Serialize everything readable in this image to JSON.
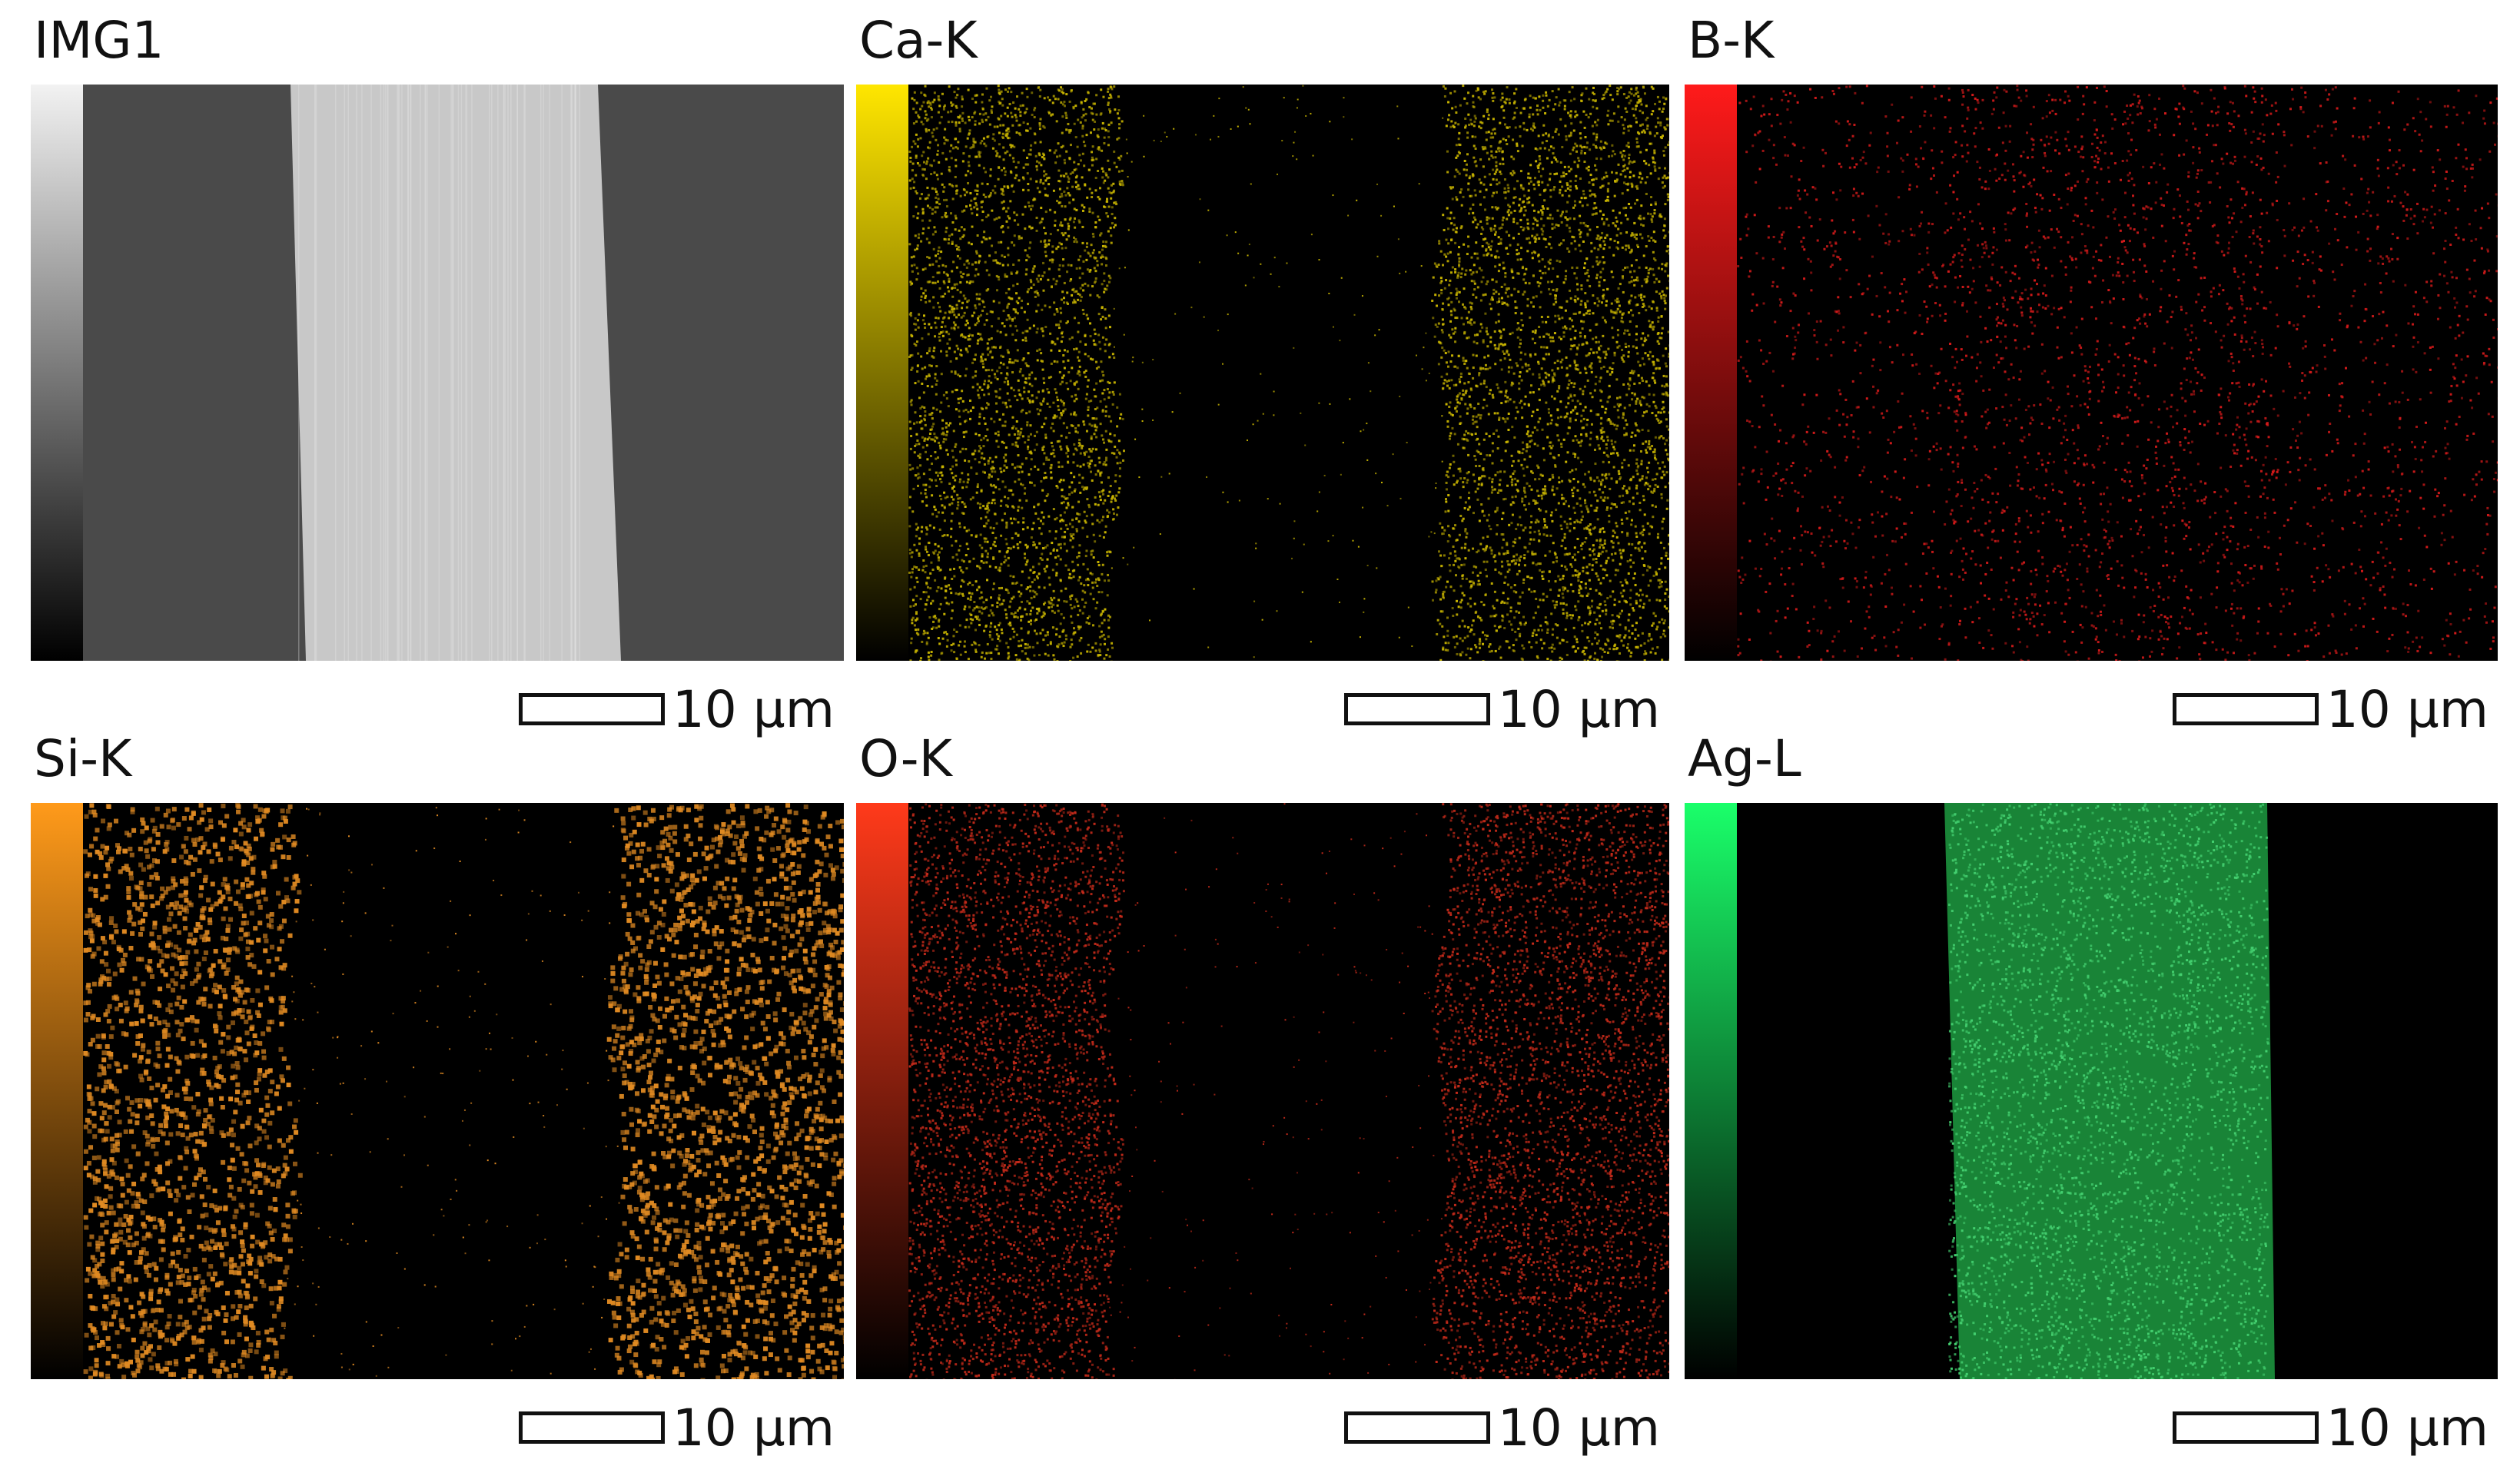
{
  "panels": [
    {
      "title": "IMG1",
      "scale_label": "10 μm",
      "mode": "sem",
      "colors": {
        "bar_top": "#f2f2f2",
        "bar_bottom": "#000000",
        "dark": "#4a4a4a",
        "bright": "#c8c8c8"
      }
    },
    {
      "title": "Ca-K",
      "scale_label": "10 μm",
      "mode": "sides",
      "colors": {
        "bar_top": "#ffe600",
        "bar_bottom": "#000000",
        "signal": "#c8b400"
      }
    },
    {
      "title": "B-K",
      "scale_label": "10 μm",
      "mode": "sparse",
      "colors": {
        "bar_top": "#ff1a1a",
        "bar_bottom": "#000000",
        "signal": "#d21a1a"
      }
    },
    {
      "title": "Si-K",
      "scale_label": "10 μm",
      "mode": "sides-patchy",
      "colors": {
        "bar_top": "#ff9a1a",
        "bar_bottom": "#000000",
        "signal": "#e08a22"
      }
    },
    {
      "title": "O-K",
      "scale_label": "10 μm",
      "mode": "sides",
      "colors": {
        "bar_top": "#ff3a1a",
        "bar_bottom": "#000000",
        "signal": "#c42a1a"
      }
    },
    {
      "title": "Ag-L",
      "scale_label": "10 μm",
      "mode": "center",
      "colors": {
        "bar_top": "#1aff6a",
        "bar_bottom": "#000000",
        "signal": "#22b04a"
      }
    }
  ]
}
